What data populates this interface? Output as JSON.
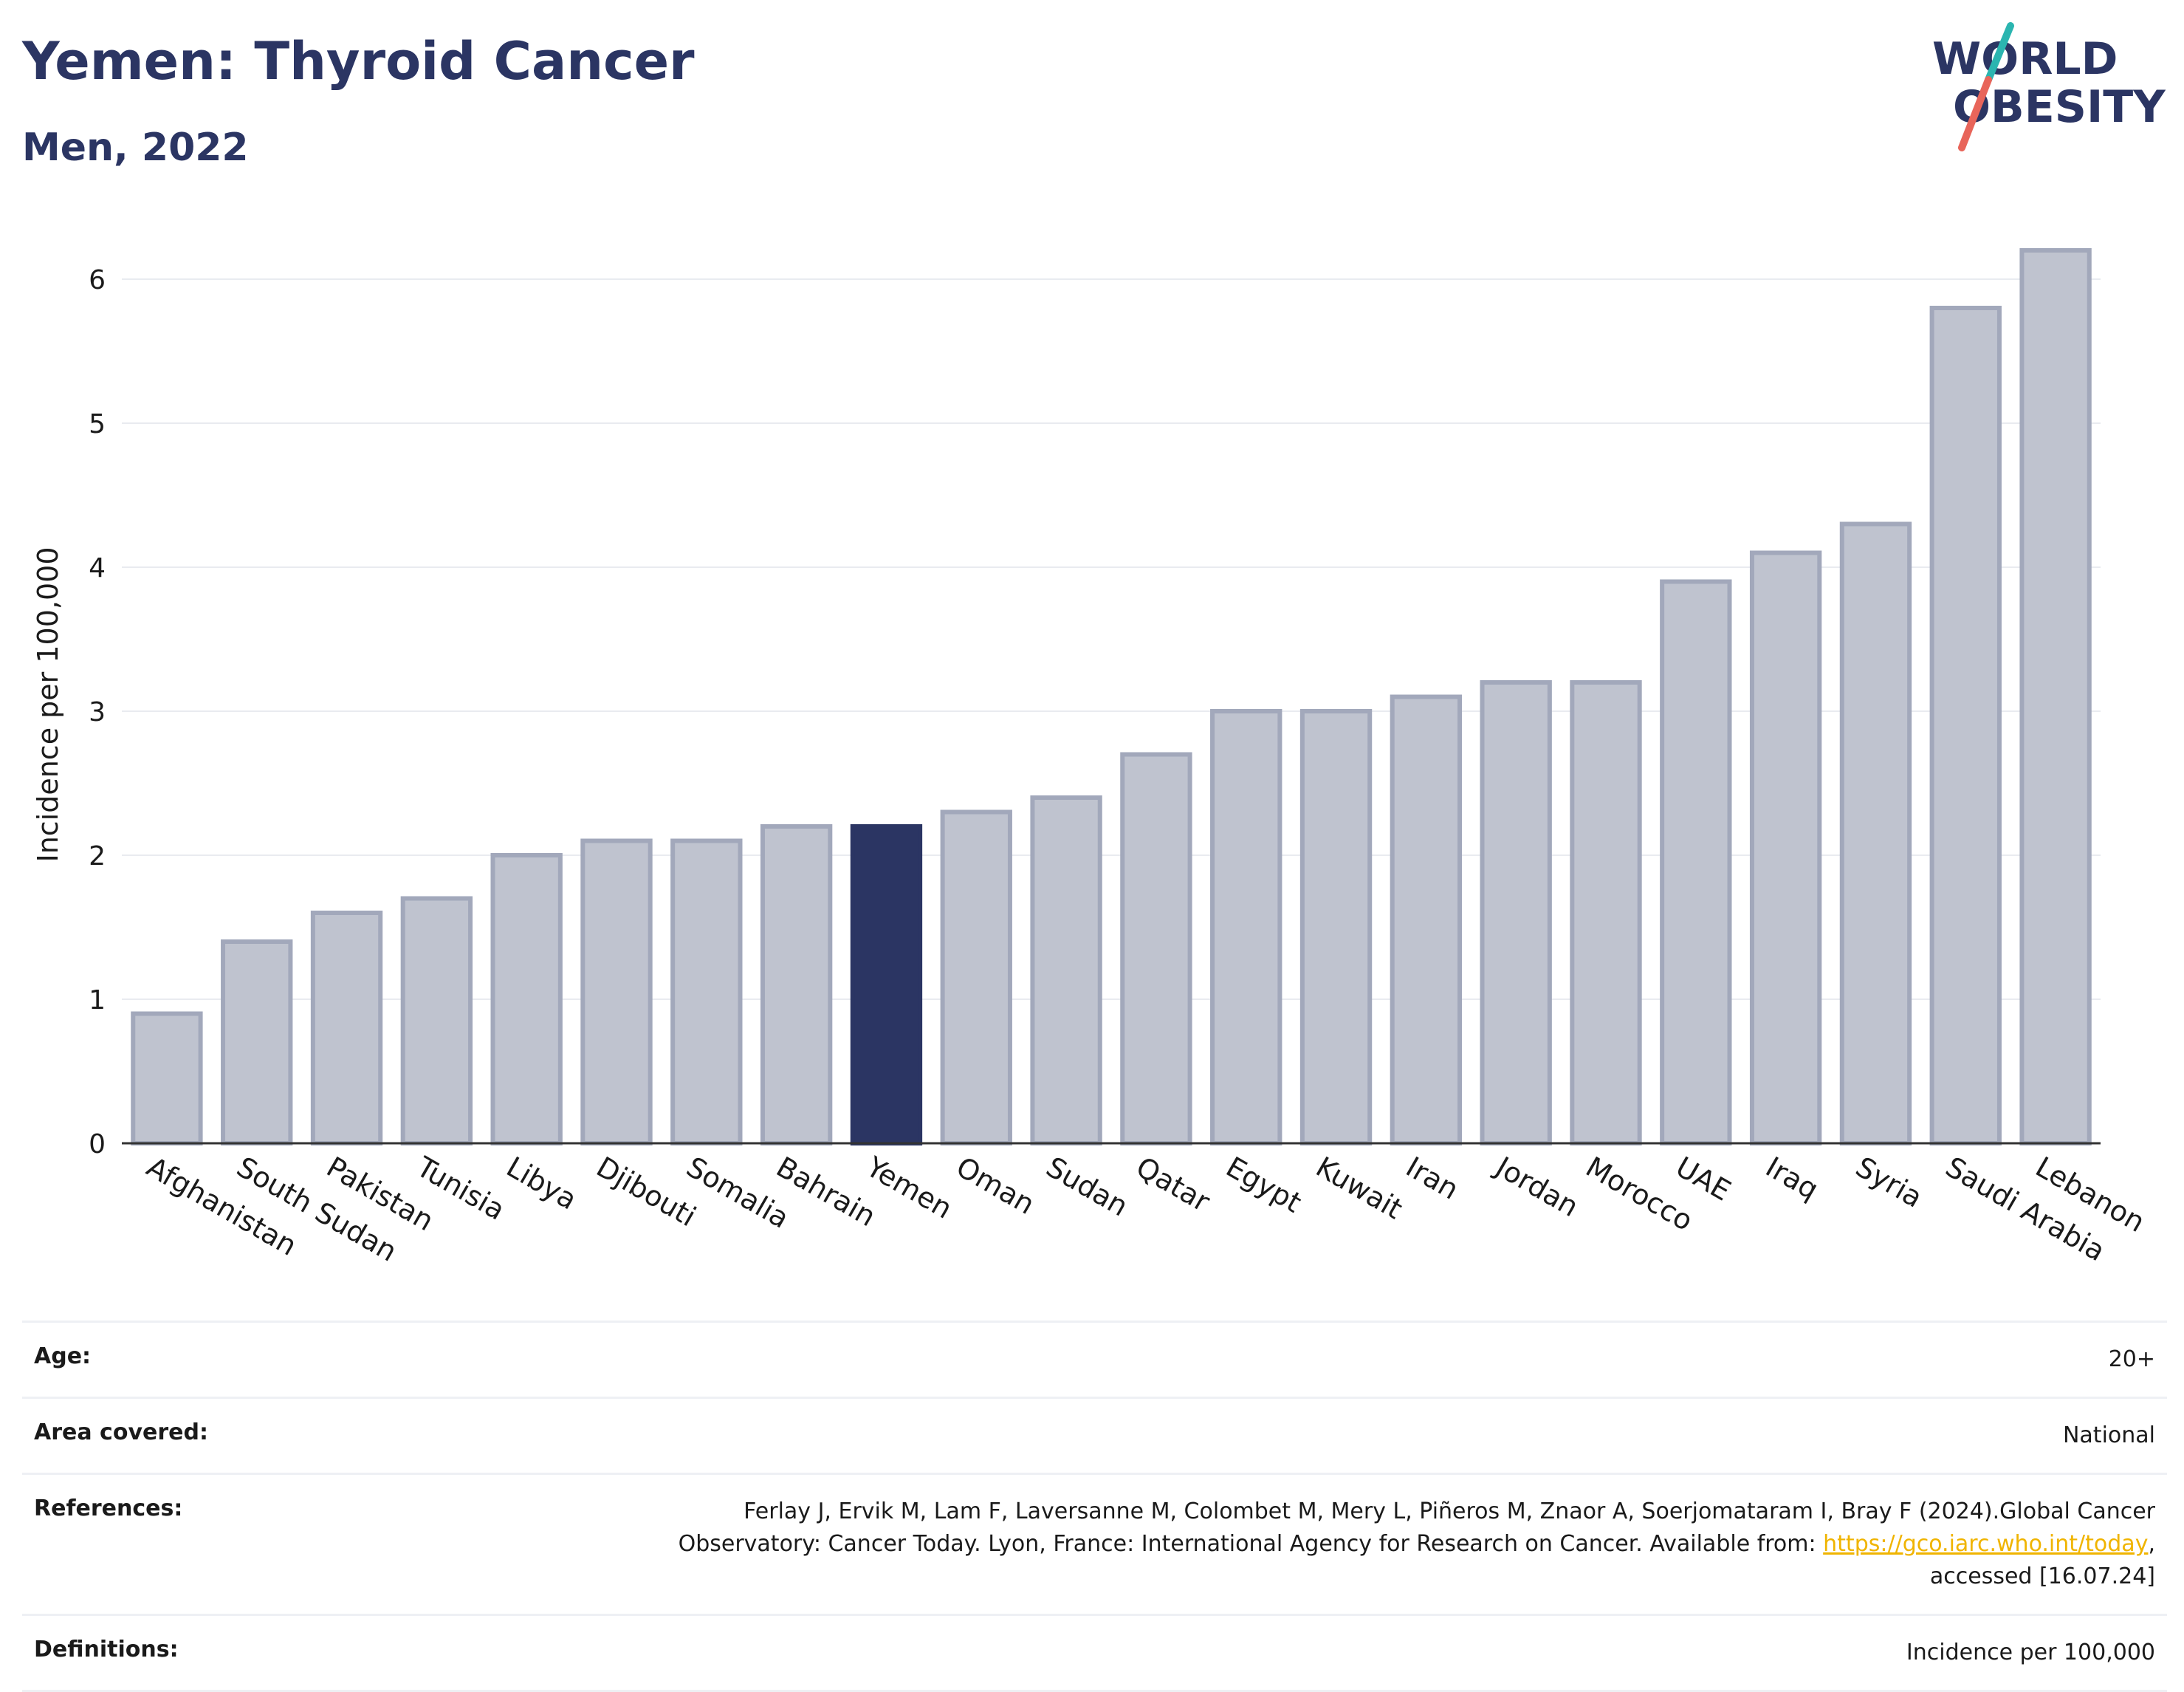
{
  "header": {
    "title": "Yemen: Thyroid Cancer",
    "subtitle": "Men, 2022"
  },
  "logo": {
    "line1": "WORLD",
    "line2": "OBESITY",
    "colors": {
      "text": "#2b3563",
      "slash_top": "#2bb5b0",
      "slash_bottom": "#e8655a"
    }
  },
  "chart_data": {
    "type": "bar",
    "ylabel": "Incidence per 100,000",
    "xlabel": "",
    "ylim": [
      0,
      6.4
    ],
    "yticks": [
      0,
      1,
      2,
      3,
      4,
      5,
      6
    ],
    "grid": true,
    "highlight": "Yemen",
    "colors": {
      "bar": "#bfc3cf",
      "bar_border": "#a2a8bb",
      "highlight": "#2b3563",
      "grid": "#e9ebf0"
    },
    "categories": [
      "Afghanistan",
      "South Sudan",
      "Pakistan",
      "Tunisia",
      "Libya",
      "Djibouti",
      "Somalia",
      "Bahrain",
      "Yemen",
      "Oman",
      "Sudan",
      "Qatar",
      "Egypt",
      "Kuwait",
      "Iran",
      "Jordan",
      "Morocco",
      "UAE",
      "Iraq",
      "Syria",
      "Saudi Arabia",
      "Lebanon"
    ],
    "values": [
      0.9,
      1.4,
      1.6,
      1.7,
      2.0,
      2.1,
      2.1,
      2.2,
      2.2,
      2.3,
      2.4,
      2.7,
      3.0,
      3.0,
      3.1,
      3.2,
      3.2,
      3.9,
      4.1,
      4.3,
      5.8,
      6.2
    ]
  },
  "meta": {
    "age_label": "Age:",
    "age_value": "20+",
    "area_label": "Area covered:",
    "area_value": "National",
    "references_label": "References:",
    "references_line1": "Ferlay J, Ervik M, Lam F, Laversanne M, Colombet M, Mery L, Piñeros M, Znaor A, Soerjomataram I, Bray F (2024).Global Cancer",
    "references_line2": "Observatory: Cancer Today. Lyon, France: International Agency for Research on Cancer. Available from: ",
    "references_link": "https://gco.iarc.who.int/today",
    "references_line2_end": ",",
    "references_line3": "accessed [16.07.24]",
    "definitions_label": "Definitions:",
    "definitions_value": "Incidence per 100,000"
  }
}
